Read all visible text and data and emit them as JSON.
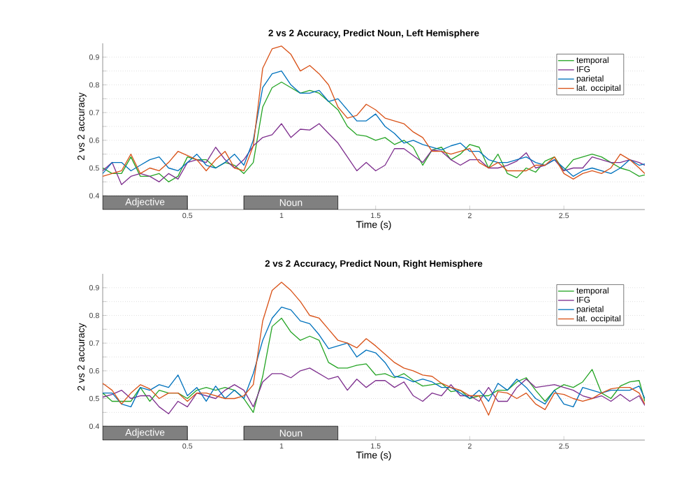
{
  "chart_data": [
    {
      "type": "line",
      "title": "2 vs 2 Accuracy, Predict Noun, Left Hemisphere",
      "xlabel": "Time (s)",
      "ylabel": "2 vs 2 accuracy",
      "x": [
        0.05,
        0.1,
        0.15,
        0.2,
        0.25,
        0.3,
        0.35,
        0.4,
        0.45,
        0.5,
        0.55,
        0.6,
        0.65,
        0.7,
        0.75,
        0.8,
        0.85,
        0.9,
        0.95,
        1.0,
        1.05,
        1.1,
        1.15,
        1.2,
        1.25,
        1.3,
        1.35,
        1.4,
        1.45,
        1.5,
        1.55,
        1.6,
        1.65,
        1.7,
        1.75,
        1.8,
        1.85,
        1.9,
        1.95,
        2.0,
        2.05,
        2.1,
        2.15,
        2.2,
        2.25,
        2.3,
        2.35,
        2.4,
        2.45,
        2.5,
        2.55,
        2.6,
        2.65,
        2.7,
        2.75,
        2.8,
        2.85,
        2.9,
        2.93
      ],
      "series": [
        {
          "name": "temporal",
          "color": "#26a526",
          "values": [
            0.5,
            0.48,
            0.48,
            0.54,
            0.47,
            0.47,
            0.48,
            0.45,
            0.47,
            0.54,
            0.53,
            0.53,
            0.5,
            0.52,
            0.51,
            0.48,
            0.52,
            0.72,
            0.79,
            0.81,
            0.79,
            0.77,
            0.78,
            0.77,
            0.74,
            0.71,
            0.65,
            0.62,
            0.615,
            0.6,
            0.61,
            0.585,
            0.6,
            0.575,
            0.51,
            0.565,
            0.575,
            0.53,
            0.55,
            0.585,
            0.575,
            0.5,
            0.55,
            0.48,
            0.465,
            0.5,
            0.485,
            0.525,
            0.54,
            0.49,
            0.53,
            0.54,
            0.55,
            0.54,
            0.52,
            0.5,
            0.49,
            0.47,
            0.475
          ]
        },
        {
          "name": "IFG",
          "color": "#7e2f8e",
          "values": [
            0.49,
            0.52,
            0.44,
            0.47,
            0.48,
            0.47,
            0.45,
            0.48,
            0.46,
            0.52,
            0.53,
            0.52,
            0.575,
            0.53,
            0.5,
            0.53,
            0.58,
            0.61,
            0.62,
            0.66,
            0.61,
            0.64,
            0.637,
            0.66,
            0.625,
            0.59,
            0.54,
            0.49,
            0.52,
            0.49,
            0.51,
            0.57,
            0.57,
            0.545,
            0.52,
            0.565,
            0.56,
            0.53,
            0.51,
            0.53,
            0.53,
            0.5,
            0.5,
            0.51,
            0.525,
            0.555,
            0.5,
            0.51,
            0.53,
            0.49,
            0.5,
            0.5,
            0.54,
            0.53,
            0.52,
            0.52,
            0.53,
            0.52,
            0.51
          ]
        },
        {
          "name": "parietal",
          "color": "#0072bd",
          "values": [
            0.48,
            0.52,
            0.52,
            0.49,
            0.51,
            0.53,
            0.54,
            0.5,
            0.49,
            0.52,
            0.55,
            0.51,
            0.5,
            0.52,
            0.55,
            0.51,
            0.6,
            0.79,
            0.84,
            0.85,
            0.8,
            0.77,
            0.77,
            0.78,
            0.74,
            0.75,
            0.71,
            0.67,
            0.67,
            0.695,
            0.65,
            0.625,
            0.59,
            0.6,
            0.585,
            0.575,
            0.565,
            0.58,
            0.59,
            0.56,
            0.56,
            0.53,
            0.52,
            0.52,
            0.53,
            0.54,
            0.52,
            0.51,
            0.53,
            0.5,
            0.47,
            0.49,
            0.5,
            0.49,
            0.48,
            0.5,
            0.53,
            0.51,
            0.515
          ]
        },
        {
          "name": "lat. occipital",
          "color": "#d95319",
          "values": [
            0.47,
            0.48,
            0.49,
            0.55,
            0.48,
            0.5,
            0.49,
            0.52,
            0.56,
            0.545,
            0.53,
            0.49,
            0.53,
            0.56,
            0.5,
            0.49,
            0.58,
            0.86,
            0.93,
            0.94,
            0.91,
            0.85,
            0.87,
            0.84,
            0.8,
            0.72,
            0.68,
            0.69,
            0.73,
            0.71,
            0.68,
            0.67,
            0.66,
            0.63,
            0.61,
            0.56,
            0.56,
            0.55,
            0.56,
            0.57,
            0.52,
            0.5,
            0.52,
            0.49,
            0.49,
            0.49,
            0.51,
            0.51,
            0.54,
            0.48,
            0.46,
            0.48,
            0.49,
            0.48,
            0.5,
            0.55,
            0.53,
            0.5,
            0.48
          ]
        }
      ],
      "xlim": [
        0.05,
        2.93
      ],
      "ylim": [
        0.35,
        0.95
      ],
      "xticks": [
        0.5,
        1,
        1.5,
        2,
        2.5
      ],
      "yticks": [
        0.4,
        {
          "value": 0.45,
          "label": null
        },
        0.5,
        {
          "value": 0.55,
          "label": null
        },
        0.6,
        {
          "value": 0.65,
          "label": null
        },
        0.7,
        {
          "value": 0.75,
          "label": null
        },
        0.8,
        {
          "value": 0.85,
          "label": null
        },
        0.9
      ],
      "grid": "y",
      "legend": "top right",
      "bands": [
        {
          "axis": "x",
          "from": 0.05,
          "to": 0.5,
          "label": "Adjective",
          "color": "#808080"
        },
        {
          "axis": "x",
          "from": 0.8,
          "to": 1.3,
          "label": "Noun",
          "color": "#808080"
        }
      ]
    },
    {
      "type": "line",
      "title": "2 vs 2 Accuracy, Predict Noun, Right Hemisphere",
      "xlabel": "Time (s)",
      "ylabel": "2 vs 2 accuracy",
      "x": [
        0.05,
        0.1,
        0.15,
        0.2,
        0.25,
        0.3,
        0.35,
        0.4,
        0.45,
        0.5,
        0.55,
        0.6,
        0.65,
        0.7,
        0.75,
        0.8,
        0.85,
        0.9,
        0.95,
        1.0,
        1.05,
        1.1,
        1.15,
        1.2,
        1.25,
        1.3,
        1.35,
        1.4,
        1.45,
        1.5,
        1.55,
        1.6,
        1.65,
        1.7,
        1.75,
        1.8,
        1.85,
        1.9,
        1.95,
        2.0,
        2.05,
        2.1,
        2.15,
        2.2,
        2.25,
        2.3,
        2.35,
        2.4,
        2.45,
        2.5,
        2.55,
        2.6,
        2.65,
        2.7,
        2.75,
        2.8,
        2.85,
        2.9,
        2.93
      ],
      "series": [
        {
          "name": "temporal",
          "color": "#26a526",
          "values": [
            0.52,
            0.49,
            0.49,
            0.49,
            0.54,
            0.49,
            0.53,
            0.52,
            0.52,
            0.5,
            0.53,
            0.54,
            0.53,
            0.54,
            0.53,
            0.5,
            0.45,
            0.58,
            0.76,
            0.79,
            0.74,
            0.71,
            0.725,
            0.71,
            0.63,
            0.61,
            0.61,
            0.62,
            0.625,
            0.585,
            0.59,
            0.575,
            0.59,
            0.565,
            0.545,
            0.55,
            0.555,
            0.525,
            0.53,
            0.5,
            0.51,
            0.51,
            0.53,
            0.53,
            0.56,
            0.575,
            0.53,
            0.49,
            0.53,
            0.55,
            0.54,
            0.56,
            0.605,
            0.52,
            0.5,
            0.545,
            0.56,
            0.565,
            0.49
          ]
        },
        {
          "name": "IFG",
          "color": "#7e2f8e",
          "values": [
            0.505,
            0.515,
            0.53,
            0.5,
            0.51,
            0.51,
            0.47,
            0.445,
            0.49,
            0.47,
            0.52,
            0.51,
            0.5,
            0.53,
            0.55,
            0.53,
            0.47,
            0.56,
            0.59,
            0.59,
            0.575,
            0.6,
            0.61,
            0.59,
            0.57,
            0.58,
            0.53,
            0.57,
            0.54,
            0.565,
            0.565,
            0.54,
            0.56,
            0.51,
            0.49,
            0.52,
            0.51,
            0.55,
            0.51,
            0.51,
            0.49,
            0.54,
            0.49,
            0.49,
            0.54,
            0.57,
            0.54,
            0.545,
            0.55,
            0.54,
            0.53,
            0.51,
            0.5,
            0.51,
            0.49,
            0.515,
            0.49,
            0.51,
            0.475
          ]
        },
        {
          "name": "parietal",
          "color": "#0072bd",
          "values": [
            0.52,
            0.52,
            0.48,
            0.47,
            0.54,
            0.53,
            0.55,
            0.54,
            0.585,
            0.51,
            0.54,
            0.49,
            0.545,
            0.5,
            0.53,
            0.5,
            0.59,
            0.71,
            0.79,
            0.83,
            0.82,
            0.78,
            0.77,
            0.73,
            0.68,
            0.69,
            0.7,
            0.65,
            0.675,
            0.665,
            0.63,
            0.58,
            0.575,
            0.56,
            0.57,
            0.56,
            0.54,
            0.54,
            0.52,
            0.5,
            0.53,
            0.49,
            0.555,
            0.53,
            0.57,
            0.54,
            0.5,
            0.48,
            0.53,
            0.48,
            0.47,
            0.54,
            0.53,
            0.52,
            0.53,
            0.53,
            0.53,
            0.545,
            0.5
          ]
        },
        {
          "name": "lat. occipital",
          "color": "#d95319",
          "values": [
            0.555,
            0.53,
            0.48,
            0.52,
            0.55,
            0.535,
            0.5,
            0.52,
            0.52,
            0.49,
            0.52,
            0.52,
            0.51,
            0.5,
            0.5,
            0.51,
            0.55,
            0.78,
            0.89,
            0.92,
            0.89,
            0.85,
            0.8,
            0.79,
            0.75,
            0.71,
            0.7,
            0.683,
            0.716,
            0.69,
            0.66,
            0.63,
            0.61,
            0.6,
            0.585,
            0.58,
            0.555,
            0.54,
            0.53,
            0.51,
            0.51,
            0.44,
            0.525,
            0.52,
            0.5,
            0.52,
            0.48,
            0.46,
            0.52,
            0.515,
            0.5,
            0.49,
            0.5,
            0.52,
            0.535,
            0.54,
            0.54,
            0.52,
            0.48
          ]
        }
      ],
      "xlim": [
        0.05,
        2.93
      ],
      "ylim": [
        0.35,
        0.95
      ],
      "xticks": [
        0.5,
        1,
        1.5,
        2,
        2.5
      ],
      "yticks": [
        0.4,
        {
          "value": 0.45,
          "label": null
        },
        0.5,
        {
          "value": 0.55,
          "label": null
        },
        0.6,
        {
          "value": 0.65,
          "label": null
        },
        0.7,
        {
          "value": 0.75,
          "label": null
        },
        0.8,
        {
          "value": 0.85,
          "label": null
        },
        0.9
      ],
      "grid": "y",
      "legend": "top right",
      "bands": [
        {
          "axis": "x",
          "from": 0.05,
          "to": 0.5,
          "label": "Adjective",
          "color": "#808080"
        },
        {
          "axis": "x",
          "from": 0.8,
          "to": 1.3,
          "label": "Noun",
          "color": "#808080"
        }
      ]
    }
  ]
}
